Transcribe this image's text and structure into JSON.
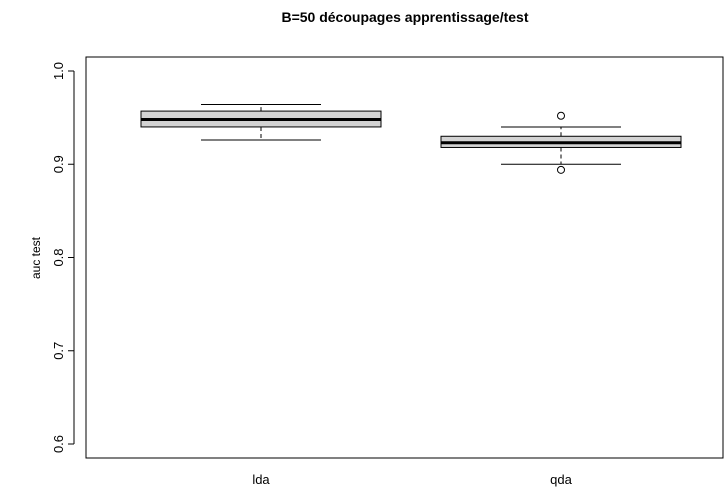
{
  "chart_data": {
    "type": "boxplot",
    "title": "B=50 découpages apprentissage/test",
    "xlabel": "",
    "ylabel": "auc test",
    "ylim": [
      0.585,
      1.015
    ],
    "yticks": [
      0.6,
      0.7,
      0.8,
      0.9,
      1.0
    ],
    "ytick_labels": [
      "0.6",
      "0.7",
      "0.8",
      "0.9",
      "1.0"
    ],
    "categories": [
      "lda",
      "qda"
    ],
    "box_fill": "#d3d3d3",
    "boxes": [
      {
        "name": "lda",
        "whisker_low": 0.926,
        "q1": 0.94,
        "median": 0.948,
        "q3": 0.957,
        "whisker_high": 0.964,
        "outliers": []
      },
      {
        "name": "qda",
        "whisker_low": 0.9,
        "q1": 0.918,
        "median": 0.923,
        "q3": 0.93,
        "whisker_high": 0.94,
        "outliers": [
          0.952,
          0.894
        ]
      }
    ],
    "grid": false
  }
}
